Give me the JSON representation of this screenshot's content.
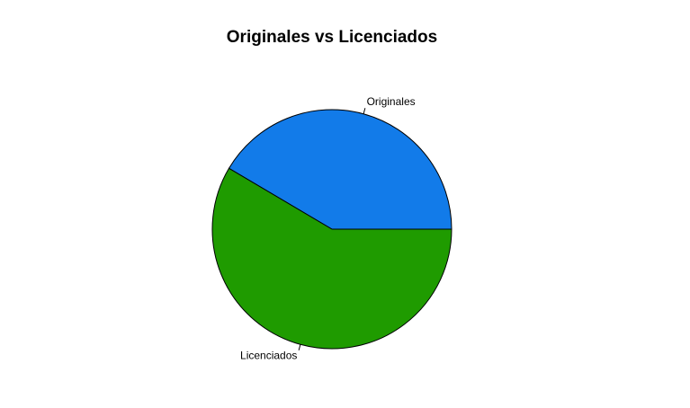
{
  "chart_data": {
    "type": "pie",
    "title": "Originales vs Licenciados",
    "slices": [
      {
        "label": "Originales",
        "value": 41.5,
        "color": "#127be9"
      },
      {
        "label": "Licenciados",
        "value": 58.5,
        "color": "#1f9b00"
      }
    ],
    "start_angle_deg": 0,
    "direction": "counterclockwise",
    "legend": "none"
  }
}
